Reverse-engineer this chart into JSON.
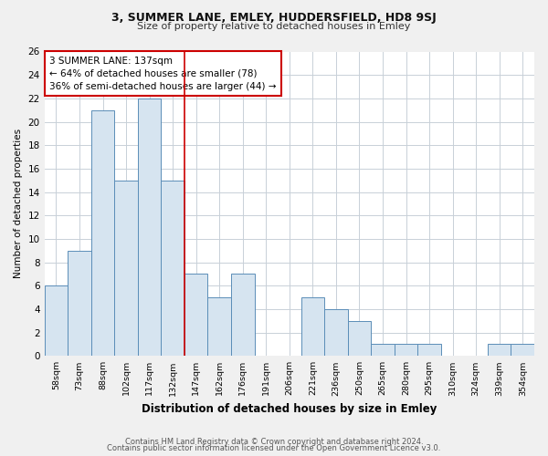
{
  "title": "3, SUMMER LANE, EMLEY, HUDDERSFIELD, HD8 9SJ",
  "subtitle": "Size of property relative to detached houses in Emley",
  "xlabel": "Distribution of detached houses by size in Emley",
  "ylabel": "Number of detached properties",
  "bar_labels": [
    "58sqm",
    "73sqm",
    "88sqm",
    "102sqm",
    "117sqm",
    "132sqm",
    "147sqm",
    "162sqm",
    "176sqm",
    "191sqm",
    "206sqm",
    "221sqm",
    "236sqm",
    "250sqm",
    "265sqm",
    "280sqm",
    "295sqm",
    "310sqm",
    "324sqm",
    "339sqm",
    "354sqm"
  ],
  "bar_values": [
    6,
    9,
    21,
    15,
    22,
    15,
    7,
    5,
    7,
    0,
    0,
    5,
    4,
    3,
    1,
    1,
    1,
    0,
    0,
    1,
    1
  ],
  "bar_color": "#d6e4f0",
  "bar_edge_color": "#5b8db8",
  "highlight_index": 5,
  "highlight_line_color": "#cc0000",
  "annotation_line1": "3 SUMMER LANE: 137sqm",
  "annotation_line2": "← 64% of detached houses are smaller (78)",
  "annotation_line3": "36% of semi-detached houses are larger (44) →",
  "annotation_box_color": "#ffffff",
  "annotation_box_edge_color": "#cc0000",
  "ylim": [
    0,
    26
  ],
  "yticks": [
    0,
    2,
    4,
    6,
    8,
    10,
    12,
    14,
    16,
    18,
    20,
    22,
    24,
    26
  ],
  "footer_line1": "Contains HM Land Registry data © Crown copyright and database right 2024.",
  "footer_line2": "Contains public sector information licensed under the Open Government Licence v3.0.",
  "background_color": "#f0f0f0",
  "plot_background_color": "#ffffff",
  "grid_color": "#c8d0d8"
}
